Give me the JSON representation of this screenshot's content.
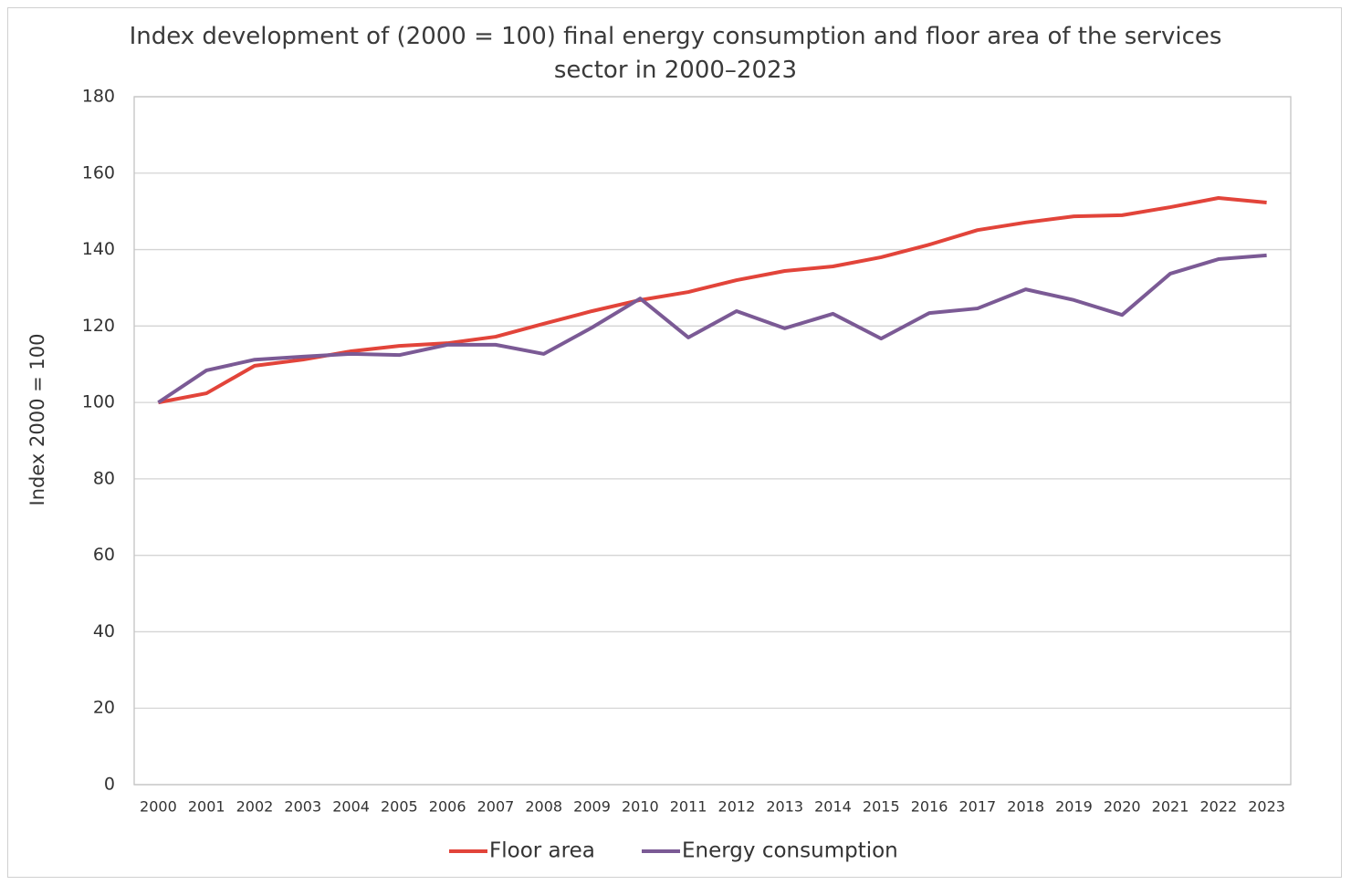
{
  "chart_data": {
    "type": "line",
    "title": "Index development of (2000 = 100) final energy consumption and floor area of the services sector in 2000–2023",
    "y_label": "Index 2000 = 100",
    "categories": [
      "2000",
      "2001",
      "2002",
      "2003",
      "2004",
      "2005",
      "2006",
      "2007",
      "2008",
      "2009",
      "2010",
      "2011",
      "2012",
      "2013",
      "2014",
      "2015",
      "2016",
      "2017",
      "2018",
      "2019",
      "2020",
      "2021",
      "2022",
      "2023"
    ],
    "series": [
      {
        "name": "Floor area",
        "color": "#e2443a",
        "values": [
          100,
          102.4,
          109.6,
          111.2,
          113.4,
          114.8,
          115.5,
          117.2,
          120.6,
          123.9,
          126.8,
          128.9,
          132.0,
          134.4,
          135.6,
          138.0,
          141.3,
          145.1,
          147.1,
          148.7,
          149.0,
          151.1,
          153.5,
          152.3
        ]
      },
      {
        "name": "Energy consumption",
        "color": "#7b5a95",
        "values": [
          100,
          108.4,
          111.2,
          112.0,
          112.7,
          112.4,
          115.1,
          115.1,
          112.7,
          119.6,
          127.2,
          117.0,
          123.9,
          119.4,
          123.2,
          116.7,
          123.4,
          124.6,
          129.6,
          126.8,
          122.9,
          133.7,
          137.5,
          138.5
        ]
      }
    ],
    "ylim": [
      0,
      180
    ],
    "yticks": [
      0,
      20,
      40,
      60,
      80,
      100,
      120,
      140,
      160,
      180
    ],
    "grid": true,
    "legend": "bottom"
  }
}
